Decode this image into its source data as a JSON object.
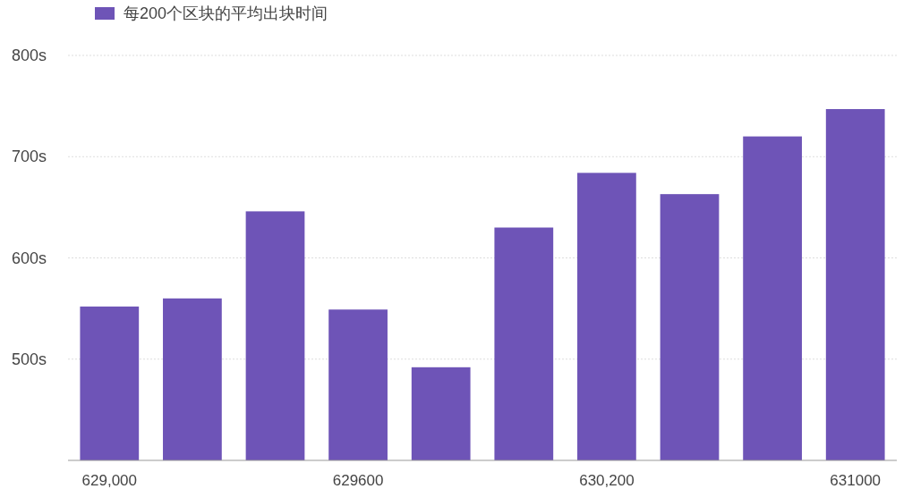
{
  "chart_data": {
    "type": "bar",
    "categories": [
      "629,000",
      null,
      null,
      "629600",
      null,
      null,
      "630,200",
      null,
      null,
      "631000"
    ],
    "series": [
      {
        "name": "每200个区块的平均出块时间",
        "color": "#6e54b7",
        "values": [
          552,
          560,
          646,
          549,
          492,
          630,
          684,
          663,
          720,
          747
        ]
      }
    ],
    "ylim": [
      400,
      800
    ],
    "yticks": [
      {
        "value": 400,
        "label": null
      },
      {
        "value": 500,
        "label": "500s"
      },
      {
        "value": 600,
        "label": "600s"
      },
      {
        "value": 700,
        "label": "700s"
      },
      {
        "value": 800,
        "label": "800s"
      }
    ],
    "grid": "y",
    "legend": "top left"
  }
}
